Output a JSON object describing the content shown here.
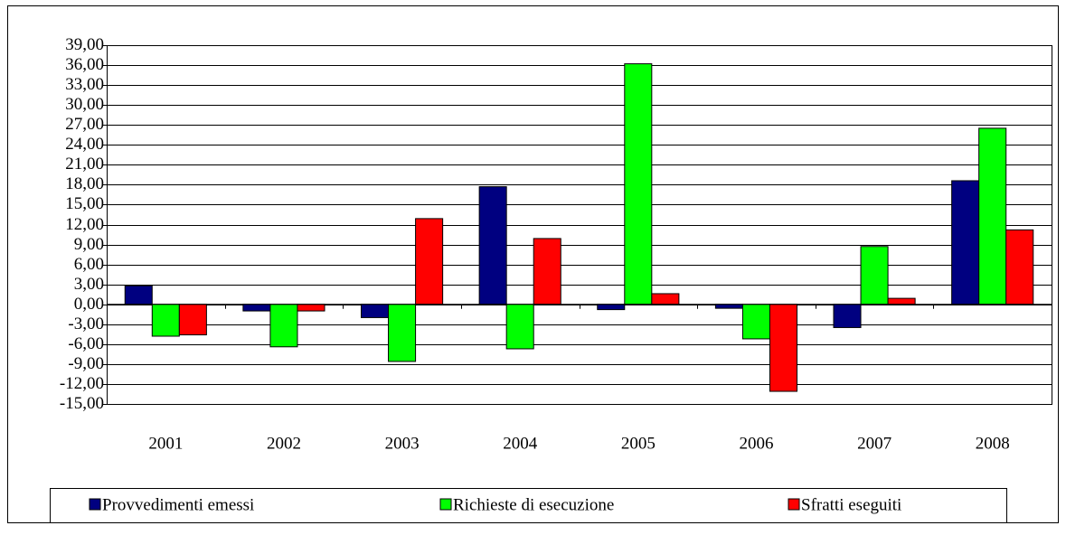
{
  "chart_data": {
    "type": "bar",
    "categories": [
      "2001",
      "2002",
      "2003",
      "2004",
      "2005",
      "2006",
      "2007",
      "2008"
    ],
    "series": [
      {
        "name": "Provvedimenti emessi",
        "color": "#000080",
        "values": [
          2.8,
          -1.0,
          -2.0,
          17.7,
          -0.8,
          -0.6,
          -3.5,
          18.6
        ]
      },
      {
        "name": "Richieste di esecuzione",
        "color": "#00ff00",
        "values": [
          -4.8,
          -6.4,
          -8.6,
          -6.7,
          36.2,
          -5.2,
          8.7,
          26.5
        ]
      },
      {
        "name": "Sfratti eseguiti",
        "color": "#ff0000",
        "values": [
          -4.6,
          -1.0,
          12.9,
          9.9,
          1.6,
          -13.1,
          0.9,
          11.2
        ]
      }
    ],
    "ylim": [
      -15,
      39
    ],
    "yticks": [
      {
        "value": -15,
        "label": "-15,00"
      },
      {
        "value": -12,
        "label": "-12,00"
      },
      {
        "value": -9,
        "label": "-9,00"
      },
      {
        "value": -6,
        "label": "-6,00"
      },
      {
        "value": -3,
        "label": "-3,00"
      },
      {
        "value": 0,
        "label": "0,00"
      },
      {
        "value": 3,
        "label": "3,00"
      },
      {
        "value": 6,
        "label": "6,00"
      },
      {
        "value": 9,
        "label": "9,00"
      },
      {
        "value": 12,
        "label": "12,00"
      },
      {
        "value": 15,
        "label": "15,00"
      },
      {
        "value": 18,
        "label": "18,00"
      },
      {
        "value": 21,
        "label": "21,00"
      },
      {
        "value": 24,
        "label": "24,00"
      },
      {
        "value": 27,
        "label": "27,00"
      },
      {
        "value": 30,
        "label": "30,00"
      },
      {
        "value": 33,
        "label": "33,00"
      },
      {
        "value": 36,
        "label": "36,00"
      },
      {
        "value": 39,
        "label": "39,00"
      }
    ],
    "grid": true
  }
}
